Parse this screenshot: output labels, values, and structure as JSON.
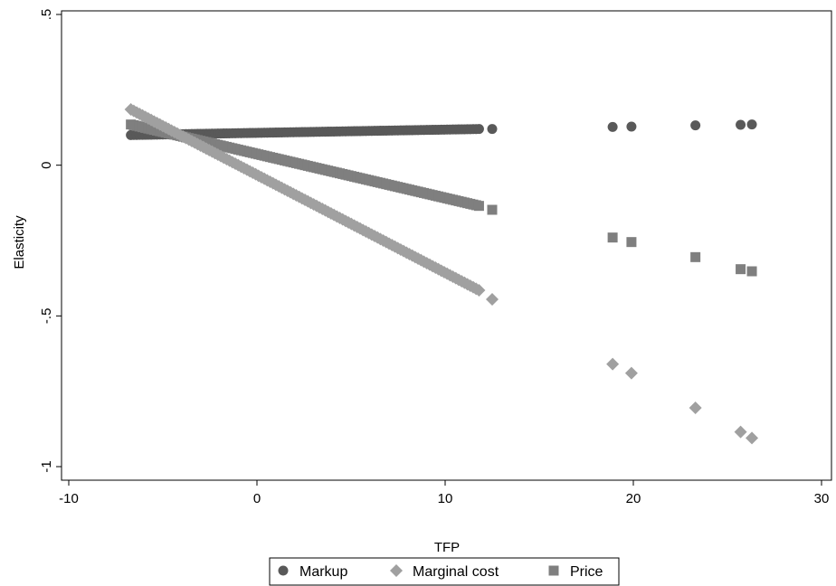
{
  "chart_data": {
    "type": "scatter",
    "title": "",
    "xlabel": "TFP",
    "ylabel": "Elasticity",
    "xlim": [
      -10,
      30
    ],
    "ylim": [
      -1,
      0.5
    ],
    "xticks": [
      -10,
      0,
      10,
      20,
      30
    ],
    "xtick_labels": [
      "-10",
      "0",
      "10",
      "20",
      "30"
    ],
    "yticks": [
      -1,
      -0.5,
      0,
      0.5
    ],
    "ytick_labels": [
      "-1",
      "-.5",
      "0",
      ".5"
    ],
    "grid": false,
    "legend_position": "bottom",
    "series": [
      {
        "name": "Markup",
        "marker": "circle",
        "color": "#595959",
        "line_segment": {
          "x0": -6.7,
          "y0": 0.1,
          "x1": 11.8,
          "y1": 0.12
        },
        "points": [
          {
            "x": 12.5,
            "y": 0.12
          },
          {
            "x": 18.9,
            "y": 0.127
          },
          {
            "x": 19.9,
            "y": 0.128
          },
          {
            "x": 23.3,
            "y": 0.132
          },
          {
            "x": 25.7,
            "y": 0.134
          },
          {
            "x": 26.3,
            "y": 0.135
          }
        ]
      },
      {
        "name": "Marginal cost",
        "marker": "diamond",
        "color": "#a0a0a0",
        "line_segment": {
          "x0": -6.7,
          "y0": 0.185,
          "x1": 11.8,
          "y1": -0.415
        },
        "points": [
          {
            "x": 12.5,
            "y": -0.445
          },
          {
            "x": 18.9,
            "y": -0.66
          },
          {
            "x": 19.9,
            "y": -0.69
          },
          {
            "x": 23.3,
            "y": -0.805
          },
          {
            "x": 25.7,
            "y": -0.885
          },
          {
            "x": 26.3,
            "y": -0.905
          }
        ]
      },
      {
        "name": "Price",
        "marker": "square",
        "color": "#7f7f7f",
        "line_segment": {
          "x0": -6.7,
          "y0": 0.135,
          "x1": 11.8,
          "y1": -0.135
        },
        "points": [
          {
            "x": 12.5,
            "y": -0.148
          },
          {
            "x": 18.9,
            "y": -0.24
          },
          {
            "x": 19.9,
            "y": -0.255
          },
          {
            "x": 23.3,
            "y": -0.305
          },
          {
            "x": 25.7,
            "y": -0.345
          },
          {
            "x": 26.3,
            "y": -0.352
          }
        ]
      }
    ]
  }
}
